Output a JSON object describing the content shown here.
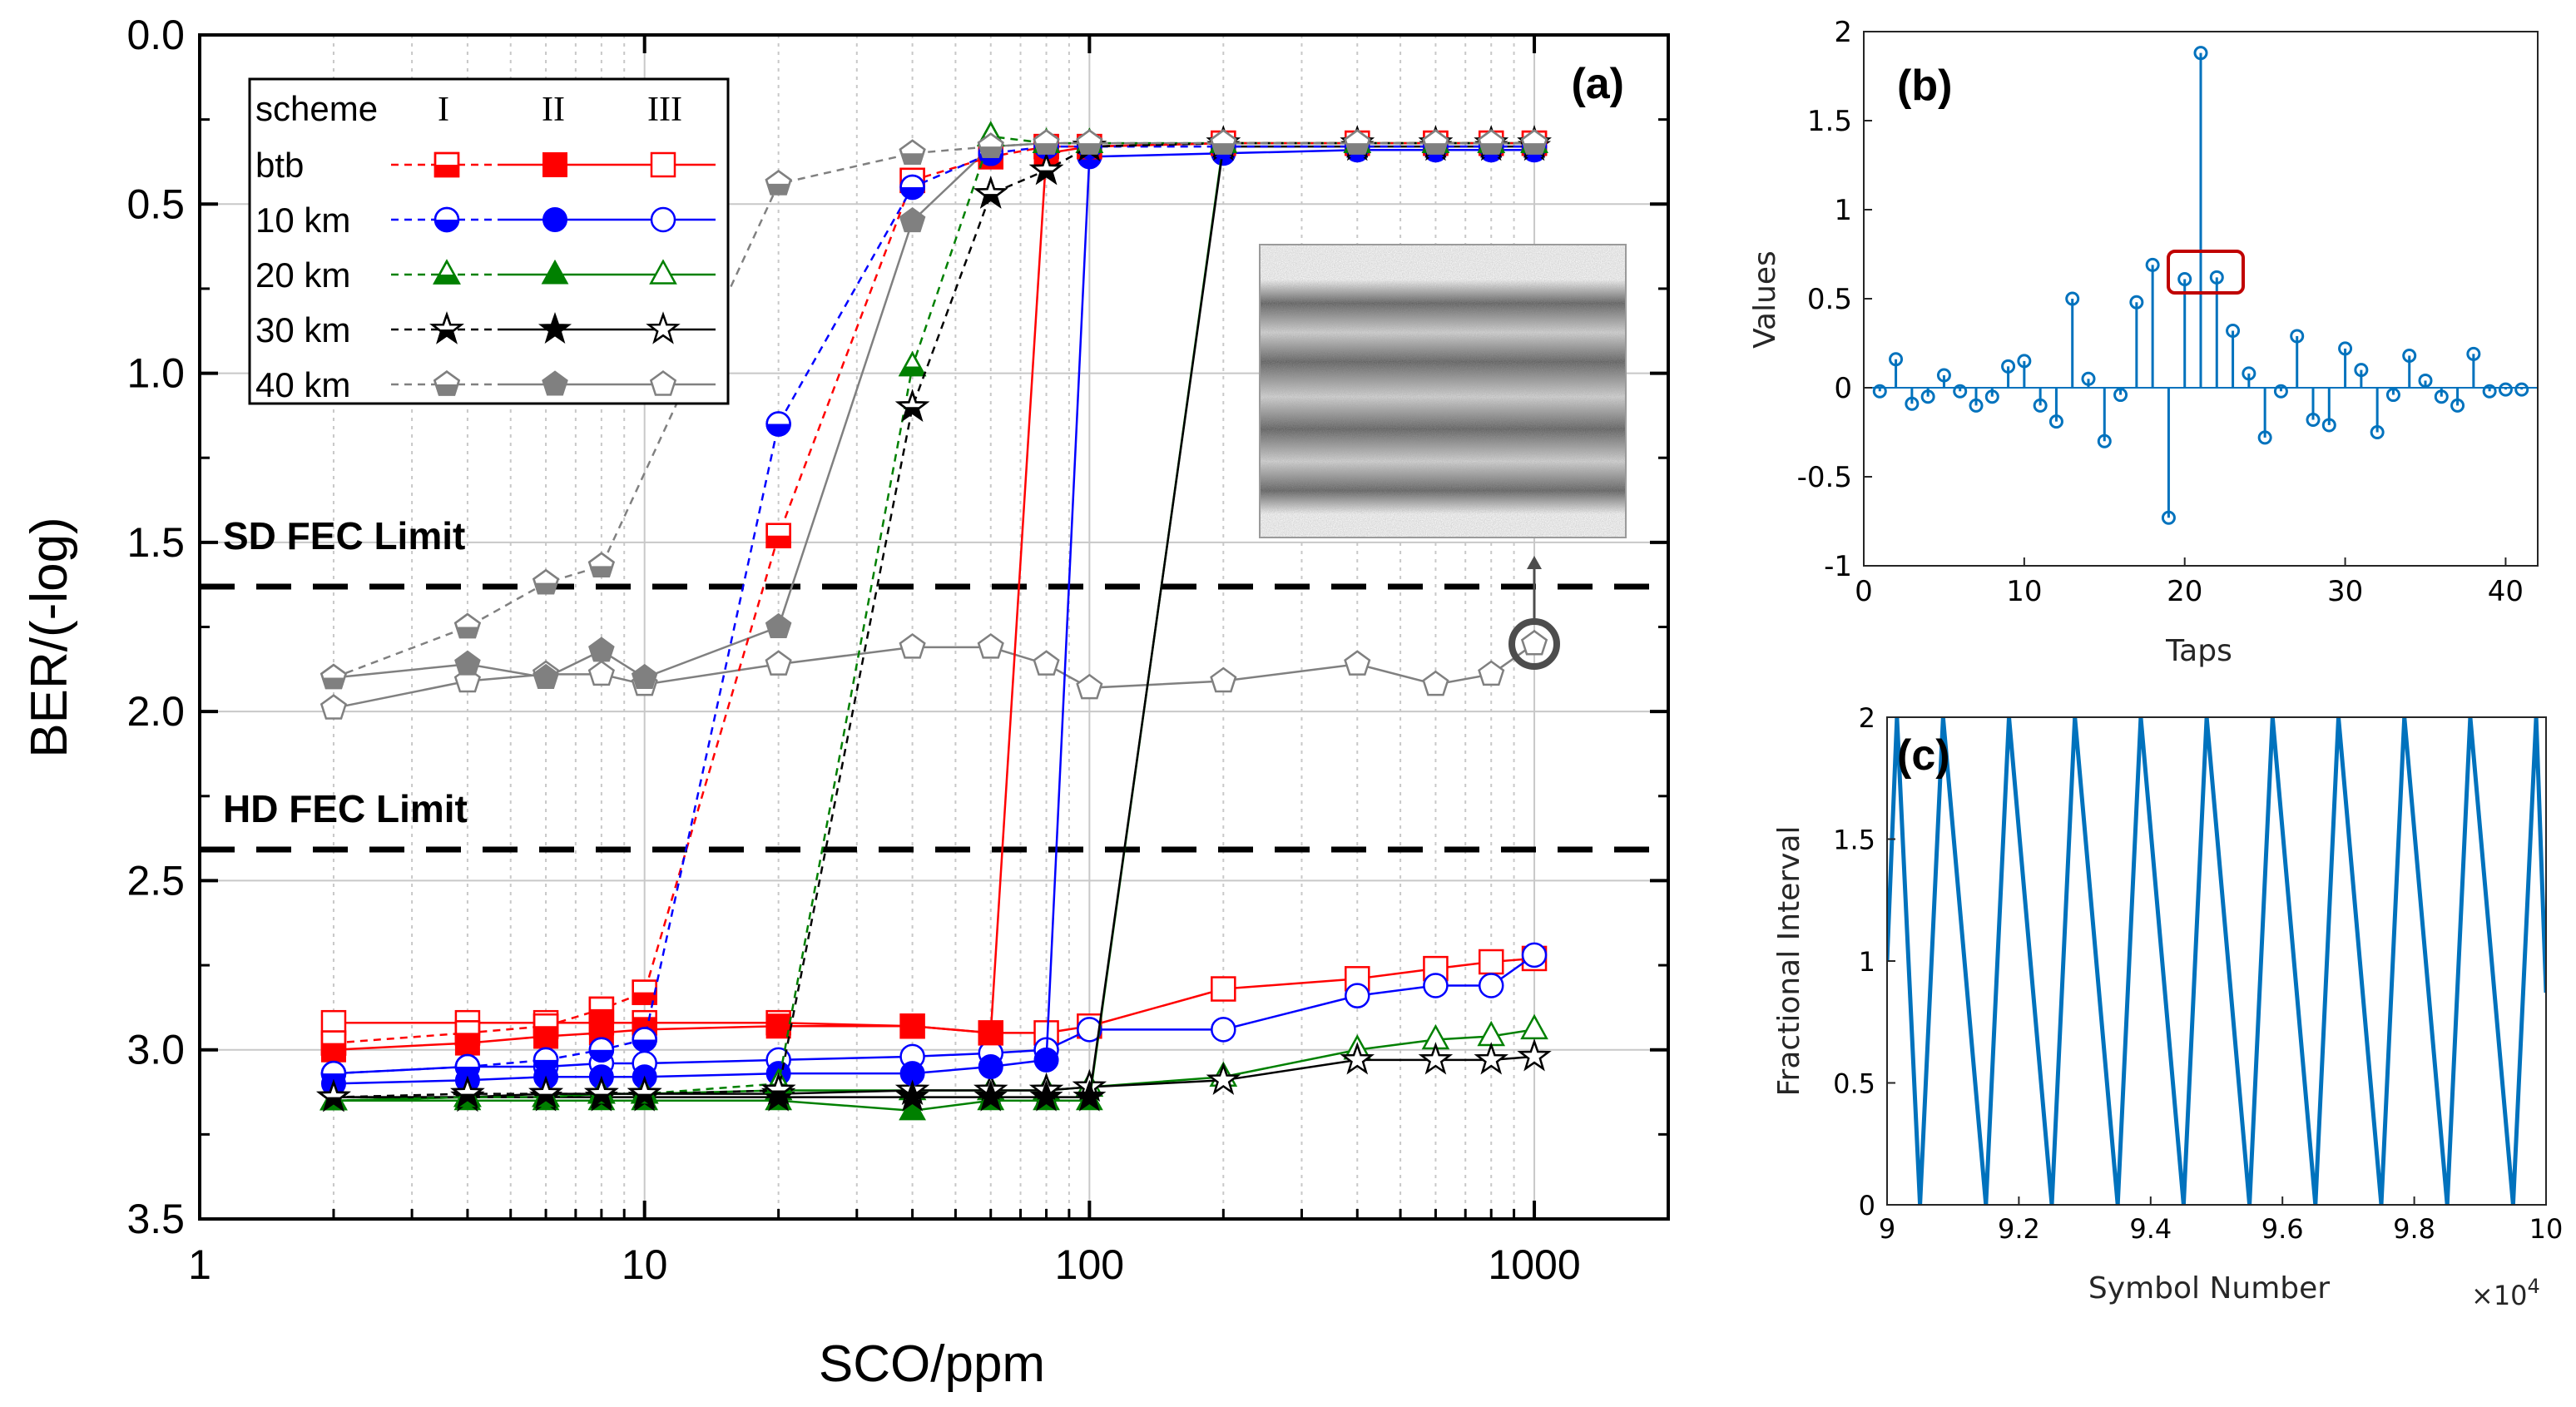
{
  "panel_a": {
    "panel_label": "(a)",
    "xlabel": "SCO/ppm",
    "ylabel": "BER/(-log)",
    "x_ticks": [
      "1",
      "10",
      "100",
      "1000"
    ],
    "y_ticks": [
      "0.0",
      "0.5",
      "1.0",
      "1.5",
      "2.0",
      "2.5",
      "3.0",
      "3.5"
    ],
    "annotations": {
      "sd_fec": "SD FEC Limit",
      "hd_fec": "HD FEC Limit"
    },
    "legend": {
      "header": "scheme",
      "scheme_labels": [
        "I",
        "II",
        "III"
      ]
    },
    "colors": {
      "btb": "#ff0000",
      "10 km": "#0000ff",
      "20 km": "#008000",
      "30 km": "#000000",
      "40 km": "#808080"
    }
  },
  "panel_b": {
    "panel_label": "(b)",
    "xlabel": "Taps",
    "ylabel": "Values",
    "x_ticks": [
      "0",
      "10",
      "20",
      "30",
      "40"
    ],
    "y_ticks": [
      "-1",
      "-0.5",
      "0",
      "0.5",
      "1",
      "1.5",
      "2"
    ],
    "color": "#0072bd"
  },
  "panel_c": {
    "panel_label": "(c)",
    "xlabel": "Symbol Number",
    "ylabel": "Fractional Interval",
    "x_ticks": [
      "9",
      "9.2",
      "9.4",
      "9.6",
      "9.8",
      "10"
    ],
    "y_ticks": [
      "0",
      "0.5",
      "1",
      "1.5",
      "2"
    ],
    "x_exponent_base": "×10",
    "x_exponent": "4",
    "color": "#0072bd"
  },
  "chart_data": [
    {
      "type": "line",
      "title": "(a)",
      "xlabel": "SCO/ppm",
      "ylabel": "BER/(-log)",
      "xscale": "log",
      "xlim": [
        1,
        2000
      ],
      "ylim": [
        3.5,
        0.0
      ],
      "y_inverted": true,
      "reference_lines": [
        {
          "label": "SD FEC Limit",
          "y": 1.64
        },
        {
          "label": "HD FEC Limit",
          "y": 2.42
        }
      ],
      "series": [
        {
          "name": "btb I",
          "link": "btb",
          "scheme": "I",
          "marker": "square-half",
          "dash": "dash",
          "x": [
            2,
            4,
            6,
            8,
            10,
            20,
            40,
            60,
            80,
            100,
            200,
            400,
            600,
            800,
            1000
          ],
          "y": [
            2.98,
            2.95,
            2.93,
            2.88,
            2.83,
            1.48,
            0.43,
            0.36,
            0.33,
            0.33,
            0.32,
            0.32,
            0.32,
            0.32,
            0.32
          ]
        },
        {
          "name": "btb II",
          "link": "btb",
          "scheme": "II",
          "marker": "square-filled",
          "dash": "solid",
          "x": [
            2,
            4,
            6,
            8,
            10,
            20,
            40,
            60,
            80,
            100,
            200,
            400,
            600,
            800,
            1000
          ],
          "y": [
            3.0,
            2.98,
            2.96,
            2.95,
            2.94,
            2.93,
            2.93,
            2.95,
            0.35,
            0.33,
            0.32,
            0.32,
            0.32,
            0.32,
            0.32
          ]
        },
        {
          "name": "btb III",
          "link": "btb",
          "scheme": "III",
          "marker": "square-open",
          "dash": "solid",
          "x": [
            2,
            4,
            6,
            8,
            10,
            20,
            40,
            60,
            80,
            100,
            200,
            400,
            600,
            800,
            1000
          ],
          "y": [
            2.92,
            2.92,
            2.92,
            2.92,
            2.92,
            2.92,
            2.93,
            2.95,
            2.95,
            2.93,
            2.82,
            2.79,
            2.76,
            2.74,
            2.73
          ]
        },
        {
          "name": "10 km I",
          "link": "10 km",
          "scheme": "I",
          "marker": "circle-half",
          "dash": "dash",
          "x": [
            2,
            4,
            6,
            8,
            10,
            20,
            40,
            60,
            80,
            100,
            200,
            400,
            600,
            800,
            1000
          ],
          "y": [
            3.07,
            3.05,
            3.03,
            3.0,
            2.97,
            1.15,
            0.45,
            0.35,
            0.33,
            0.33,
            0.33,
            0.33,
            0.33,
            0.33,
            0.33
          ]
        },
        {
          "name": "10 km II",
          "link": "10 km",
          "scheme": "II",
          "marker": "circle-filled",
          "dash": "solid",
          "x": [
            2,
            4,
            6,
            8,
            10,
            20,
            40,
            60,
            80,
            100,
            200,
            400,
            600,
            800,
            1000
          ],
          "y": [
            3.1,
            3.09,
            3.08,
            3.08,
            3.08,
            3.07,
            3.07,
            3.05,
            3.03,
            0.36,
            0.35,
            0.34,
            0.34,
            0.34,
            0.34
          ]
        },
        {
          "name": "10 km III",
          "link": "10 km",
          "scheme": "III",
          "marker": "circle-open",
          "dash": "solid",
          "x": [
            2,
            4,
            6,
            8,
            10,
            20,
            40,
            60,
            80,
            100,
            200,
            400,
            600,
            800,
            1000
          ],
          "y": [
            3.07,
            3.05,
            3.05,
            3.04,
            3.04,
            3.03,
            3.02,
            3.01,
            3.0,
            2.94,
            2.94,
            2.84,
            2.81,
            2.81,
            2.72
          ]
        },
        {
          "name": "20 km I",
          "link": "20 km",
          "scheme": "I",
          "marker": "triangle-half",
          "dash": "dash",
          "x": [
            2,
            4,
            6,
            8,
            10,
            20,
            40,
            60,
            80,
            100,
            200,
            400,
            600,
            800,
            1000
          ],
          "y": [
            3.15,
            3.14,
            3.14,
            3.13,
            3.13,
            3.1,
            0.98,
            0.3,
            0.32,
            0.32,
            0.32,
            0.32,
            0.32,
            0.32,
            0.32
          ]
        },
        {
          "name": "20 km II",
          "link": "20 km",
          "scheme": "II",
          "marker": "triangle-filled",
          "dash": "solid",
          "x": [
            2,
            4,
            6,
            8,
            10,
            20,
            40,
            60,
            80,
            100,
            200,
            400,
            600,
            800,
            1000
          ],
          "y": [
            3.15,
            3.15,
            3.15,
            3.15,
            3.15,
            3.15,
            3.18,
            3.15,
            3.15,
            3.15,
            0.32,
            0.32,
            0.32,
            0.32,
            0.32
          ]
        },
        {
          "name": "20 km III",
          "link": "20 km",
          "scheme": "III",
          "marker": "triangle-open",
          "dash": "solid",
          "x": [
            2,
            4,
            6,
            8,
            10,
            20,
            40,
            60,
            80,
            100,
            200,
            400,
            600,
            800,
            1000
          ],
          "y": [
            3.15,
            3.14,
            3.14,
            3.13,
            3.13,
            3.12,
            3.12,
            3.12,
            3.12,
            3.11,
            3.08,
            3.0,
            2.97,
            2.96,
            2.94
          ]
        },
        {
          "name": "30 km I",
          "link": "30 km",
          "scheme": "I",
          "marker": "star-half",
          "dash": "dash",
          "x": [
            2,
            4,
            6,
            8,
            10,
            20,
            40,
            60,
            80,
            100,
            200,
            400,
            600,
            800,
            1000
          ],
          "y": [
            3.14,
            3.13,
            3.13,
            3.13,
            3.13,
            3.12,
            1.1,
            0.47,
            0.4,
            0.33,
            0.32,
            0.32,
            0.32,
            0.32,
            0.32
          ]
        },
        {
          "name": "30 km II",
          "link": "30 km",
          "scheme": "II",
          "marker": "star-filled",
          "dash": "solid",
          "x": [
            2,
            4,
            6,
            8,
            10,
            20,
            40,
            60,
            80,
            100,
            200,
            400,
            600,
            800,
            1000
          ],
          "y": [
            3.14,
            3.14,
            3.14,
            3.14,
            3.14,
            3.14,
            3.14,
            3.14,
            3.14,
            3.14,
            0.33,
            0.33,
            0.33,
            0.33,
            0.33
          ]
        },
        {
          "name": "30 km III",
          "link": "30 km",
          "scheme": "III",
          "marker": "star-open",
          "dash": "solid",
          "x": [
            2,
            4,
            6,
            8,
            10,
            20,
            40,
            60,
            80,
            100,
            200,
            400,
            600,
            800,
            1000
          ],
          "y": [
            3.14,
            3.14,
            3.13,
            3.13,
            3.13,
            3.13,
            3.12,
            3.12,
            3.12,
            3.11,
            3.09,
            3.03,
            3.03,
            3.03,
            3.02
          ]
        },
        {
          "name": "40 km I",
          "link": "40 km",
          "scheme": "I",
          "marker": "pentagon-half",
          "dash": "dash",
          "x": [
            2,
            4,
            6,
            8,
            20,
            40,
            60,
            80,
            100,
            200,
            400,
            600,
            800,
            1000
          ],
          "y": [
            1.9,
            1.75,
            1.62,
            1.57,
            0.44,
            0.35,
            0.33,
            0.32,
            0.32,
            0.32,
            0.32,
            0.32,
            0.32,
            0.32
          ]
        },
        {
          "name": "40 km II",
          "link": "40 km",
          "scheme": "II",
          "marker": "pentagon-filled",
          "dash": "solid",
          "x": [
            2,
            4,
            6,
            8,
            10,
            20,
            40,
            60,
            80,
            100,
            200,
            400,
            600,
            800,
            1000
          ],
          "y": [
            1.9,
            1.86,
            1.9,
            1.82,
            1.9,
            1.75,
            0.55,
            0.33,
            0.32,
            0.32,
            0.32,
            0.32,
            0.32,
            0.32,
            0.32
          ]
        },
        {
          "name": "40 km III",
          "link": "40 km",
          "scheme": "III",
          "marker": "pentagon-open",
          "dash": "solid",
          "x": [
            2,
            4,
            6,
            8,
            10,
            20,
            40,
            60,
            80,
            100,
            200,
            400,
            600,
            800,
            1000
          ],
          "y": [
            1.99,
            1.91,
            1.89,
            1.89,
            1.92,
            1.86,
            1.81,
            1.81,
            1.86,
            1.93,
            1.91,
            1.86,
            1.92,
            1.89,
            1.8
          ]
        }
      ]
    },
    {
      "type": "stem",
      "title": "(b)",
      "xlabel": "Taps",
      "ylabel": "Values",
      "xlim": [
        0,
        42
      ],
      "ylim": [
        -1,
        2
      ],
      "highlight_box_taps": [
        20,
        22
      ],
      "x": [
        1,
        2,
        3,
        4,
        5,
        6,
        7,
        8,
        9,
        10,
        11,
        12,
        13,
        14,
        15,
        16,
        17,
        18,
        19,
        20,
        21,
        22,
        23,
        24,
        25,
        26,
        27,
        28,
        29,
        30,
        31,
        32,
        33,
        34,
        35,
        36,
        37,
        38,
        39,
        40,
        41
      ],
      "values": [
        -0.02,
        0.16,
        -0.09,
        -0.05,
        0.07,
        -0.02,
        -0.1,
        -0.05,
        0.12,
        0.15,
        -0.1,
        -0.19,
        0.5,
        0.05,
        -0.3,
        -0.04,
        0.48,
        0.69,
        -0.73,
        0.61,
        1.88,
        0.62,
        0.32,
        0.08,
        -0.28,
        -0.02,
        0.29,
        -0.18,
        -0.21,
        0.22,
        0.1,
        -0.25,
        -0.04,
        0.18,
        0.04,
        -0.05,
        -0.1,
        0.19,
        -0.02,
        -0.01,
        -0.01
      ]
    },
    {
      "type": "line",
      "title": "(c)",
      "xlabel": "Symbol Number",
      "ylabel": "Fractional Interval",
      "x_multiplier": 10000,
      "xlim": [
        9,
        10
      ],
      "ylim": [
        0,
        2
      ],
      "x": [
        9.0,
        9.015,
        9.015,
        9.05,
        9.085,
        9.085,
        9.15,
        9.185,
        9.185,
        9.25,
        9.285,
        9.285,
        9.35,
        9.385,
        9.385,
        9.45,
        9.485,
        9.485,
        9.55,
        9.585,
        9.585,
        9.65,
        9.685,
        9.685,
        9.75,
        9.785,
        9.785,
        9.85,
        9.885,
        9.885,
        9.95,
        9.985,
        9.985,
        10.0
      ],
      "values": [
        1.0,
        2.0,
        2.0,
        0.0,
        2.0,
        2.0,
        0.0,
        2.0,
        2.0,
        0.0,
        2.0,
        2.0,
        0.0,
        2.0,
        2.0,
        0.0,
        2.0,
        2.0,
        0.0,
        2.0,
        2.0,
        0.0,
        2.0,
        2.0,
        0.0,
        2.0,
        2.0,
        0.0,
        2.0,
        2.0,
        0.0,
        2.0,
        2.0,
        0.87
      ]
    }
  ]
}
